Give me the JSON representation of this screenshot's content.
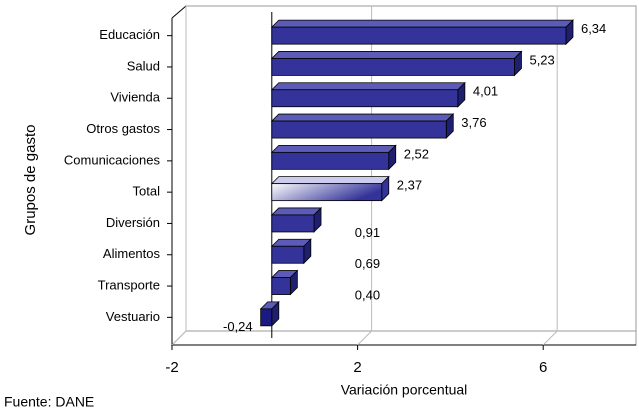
{
  "chart_data": {
    "type": "bar",
    "orientation": "horizontal",
    "categories": [
      "Educación",
      "Salud",
      "Vivienda",
      "Otros gastos",
      "Comunicaciones",
      "Total",
      "Diversión",
      "Alimentos",
      "Transporte",
      "Vestuario"
    ],
    "values": [
      6.34,
      5.23,
      4.01,
      3.76,
      2.52,
      2.37,
      0.91,
      0.69,
      0.4,
      -0.24
    ],
    "value_labels": [
      "6,34",
      "5,23",
      "4,01",
      "3,76",
      "2,52",
      "2,37",
      "0,91",
      "0,69",
      "0,40",
      "-0,24"
    ],
    "colors": [
      "#333399",
      "#333399",
      "#333399",
      "#333399",
      "#333399",
      "#9999cc",
      "#333399",
      "#333399",
      "#333399",
      "#1a1a80"
    ],
    "xlim": [
      -2,
      8
    ],
    "xticks": [
      -2,
      2,
      6
    ],
    "grid": true,
    "xlabel": "Variación porcentual",
    "ylabel": "Grupos de gasto",
    "source": "Fuente: DANE"
  }
}
